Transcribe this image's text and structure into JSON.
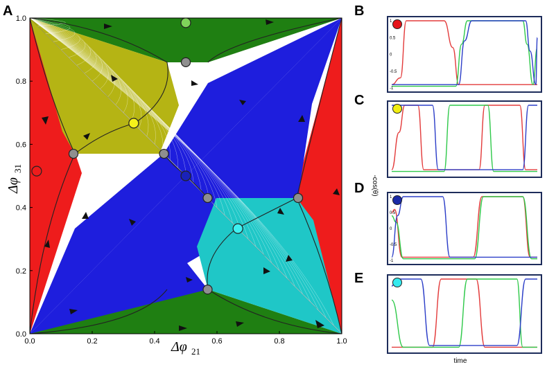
{
  "panels": {
    "A": "A",
    "B": "B",
    "C": "C",
    "D": "D",
    "E": "E"
  },
  "colors": {
    "red": "#ee1c1c",
    "green": "#1f7f12",
    "olive": "#b5b414",
    "blue": "#1e1edd",
    "cyan": "#1fc7c7",
    "gray": "#8f8f8f",
    "trace_red": "#e33b3b",
    "trace_green": "#2fc94a",
    "trace_blue": "#2c3ec8",
    "frame": "#1d2c5a"
  },
  "chart_data": [
    {
      "type": "scatter",
      "title": "",
      "description_kind": "phase plane basins of attraction",
      "xlabel_symbol": "Δφ",
      "xlabel_sub": "21",
      "ylabel_symbol": "Δφ",
      "ylabel_sub": "31",
      "xlim": [
        0,
        1
      ],
      "ylim": [
        0,
        1
      ],
      "x_ticks": [
        "0.0",
        "0.2",
        "0.4",
        "0.6",
        "0.8",
        "1.0"
      ],
      "y_ticks": [
        "0.0",
        "0.2",
        "0.4",
        "0.6",
        "0.8",
        "1.0"
      ],
      "fixed_points": [
        {
          "name": "red-attractor",
          "x": 0.022,
          "y": 0.515,
          "color": "red"
        },
        {
          "name": "green-attractor",
          "x": 0.5,
          "y": 0.985,
          "color": "green"
        },
        {
          "name": "yellow-attractor",
          "x": 0.333,
          "y": 0.667,
          "color": "yellow"
        },
        {
          "name": "blue-attractor",
          "x": 0.5,
          "y": 0.5,
          "color": "blue"
        },
        {
          "name": "cyan-attractor",
          "x": 0.667,
          "y": 0.333,
          "color": "cyan"
        },
        {
          "name": "saddle",
          "x": 0.5,
          "y": 0.86,
          "color": "gray"
        },
        {
          "name": "saddle",
          "x": 0.14,
          "y": 0.57,
          "color": "gray"
        },
        {
          "name": "saddle",
          "x": 0.43,
          "y": 0.57,
          "color": "gray"
        },
        {
          "name": "saddle",
          "x": 0.57,
          "y": 0.43,
          "color": "gray"
        },
        {
          "name": "saddle",
          "x": 0.86,
          "y": 0.43,
          "color": "gray"
        },
        {
          "name": "saddle",
          "x": 0.57,
          "y": 0.14,
          "color": "gray"
        }
      ]
    },
    {
      "type": "line",
      "panel": "B",
      "marker_color": "red",
      "y_ticks": [
        "1",
        "0.5",
        "0",
        "-0.5",
        "-1"
      ],
      "ylim": [
        -1,
        1
      ],
      "series": [
        {
          "name": "red",
          "x": [
            0,
            0.06,
            0.1,
            0.36,
            0.42,
            0.46,
            0.7,
            0.75,
            0.8,
            1.0
          ],
          "values": [
            -0.9,
            -0.7,
            1.0,
            1.0,
            0.2,
            -0.9,
            -0.9,
            -0.9,
            -0.9,
            -0.9
          ]
        },
        {
          "name": "green",
          "x": [
            0,
            0.44,
            0.48,
            0.52,
            0.9,
            0.93,
            0.97,
            1.0
          ],
          "values": [
            -0.95,
            -0.95,
            0.3,
            1.0,
            1.0,
            0.3,
            -0.9,
            0.2
          ]
        },
        {
          "name": "blue",
          "x": [
            0,
            0.46,
            0.5,
            0.55,
            0.92,
            0.95,
            0.99,
            1.0
          ],
          "values": [
            -0.9,
            -0.9,
            0.4,
            1.0,
            1.0,
            0.1,
            -0.9,
            0.5
          ]
        }
      ]
    },
    {
      "type": "line",
      "panel": "C",
      "marker_color": "yellow",
      "y_ticks": [],
      "ylim": [
        -1,
        1
      ],
      "series": [
        {
          "name": "red",
          "x": [
            0,
            0.05,
            0.09,
            0.18,
            0.22,
            0.6,
            0.64,
            0.88,
            0.92,
            1.0
          ],
          "values": [
            -0.9,
            0.2,
            1.0,
            1.0,
            -0.9,
            -0.9,
            1.0,
            1.0,
            -0.9,
            -0.9
          ]
        },
        {
          "name": "green",
          "x": [
            0,
            0.36,
            0.4,
            0.66,
            0.7,
            1.0
          ],
          "values": [
            -0.95,
            -0.95,
            1.0,
            1.0,
            -0.95,
            -0.95
          ]
        },
        {
          "name": "blue",
          "x": [
            0,
            0.01,
            0.05,
            0.28,
            0.32,
            0.9,
            0.94,
            1.0
          ],
          "values": [
            1.0,
            1.0,
            1.0,
            1.0,
            -0.9,
            -0.9,
            1.0,
            1.0
          ]
        }
      ]
    },
    {
      "type": "line",
      "panel": "D",
      "marker_color": "blue",
      "y_ticks": [
        "1",
        "0.5",
        "0",
        "-0.5",
        "-1"
      ],
      "ylim": [
        -1,
        1
      ],
      "series": [
        {
          "name": "red",
          "x": [
            0,
            0.02,
            0.07,
            0.56,
            0.62,
            0.9,
            0.95,
            1.0
          ],
          "values": [
            0.5,
            0.6,
            -0.9,
            -0.9,
            1.0,
            1.0,
            -0.9,
            -0.9
          ]
        },
        {
          "name": "green",
          "x": [
            0,
            0.03,
            0.08,
            0.57,
            0.63,
            0.9,
            0.96,
            1.0
          ],
          "values": [
            0.4,
            0.2,
            -0.95,
            -0.95,
            1.0,
            1.0,
            -0.95,
            -0.95
          ]
        },
        {
          "name": "blue",
          "x": [
            0,
            0.04,
            0.08,
            0.35,
            0.4,
            1.0
          ],
          "values": [
            -0.9,
            0.4,
            1.0,
            1.0,
            -0.9,
            -0.9
          ]
        }
      ]
    },
    {
      "type": "line",
      "panel": "E",
      "marker_color": "cyan",
      "y_ticks": [],
      "ylim": [
        -1,
        1
      ],
      "series": [
        {
          "name": "red",
          "x": [
            0,
            0.28,
            0.34,
            0.58,
            0.64,
            1.0
          ],
          "values": [
            -0.95,
            -0.95,
            1.0,
            1.0,
            -0.95,
            -0.95
          ]
        },
        {
          "name": "green",
          "x": [
            0,
            0.08,
            0.12,
            0.46,
            0.52,
            0.86,
            0.9,
            1.0
          ],
          "values": [
            0.4,
            -0.95,
            -0.95,
            -0.95,
            1.0,
            1.0,
            -0.95,
            -0.95
          ]
        },
        {
          "name": "blue",
          "x": [
            0,
            0.03,
            0.08,
            0.2,
            0.26,
            0.86,
            0.92,
            1.0
          ],
          "values": [
            0.8,
            1.0,
            1.0,
            1.0,
            -0.9,
            -0.9,
            1.0,
            1.0
          ]
        }
      ]
    }
  ],
  "shared": {
    "ylabel": "-cos(θ)",
    "xlabel": "time"
  }
}
